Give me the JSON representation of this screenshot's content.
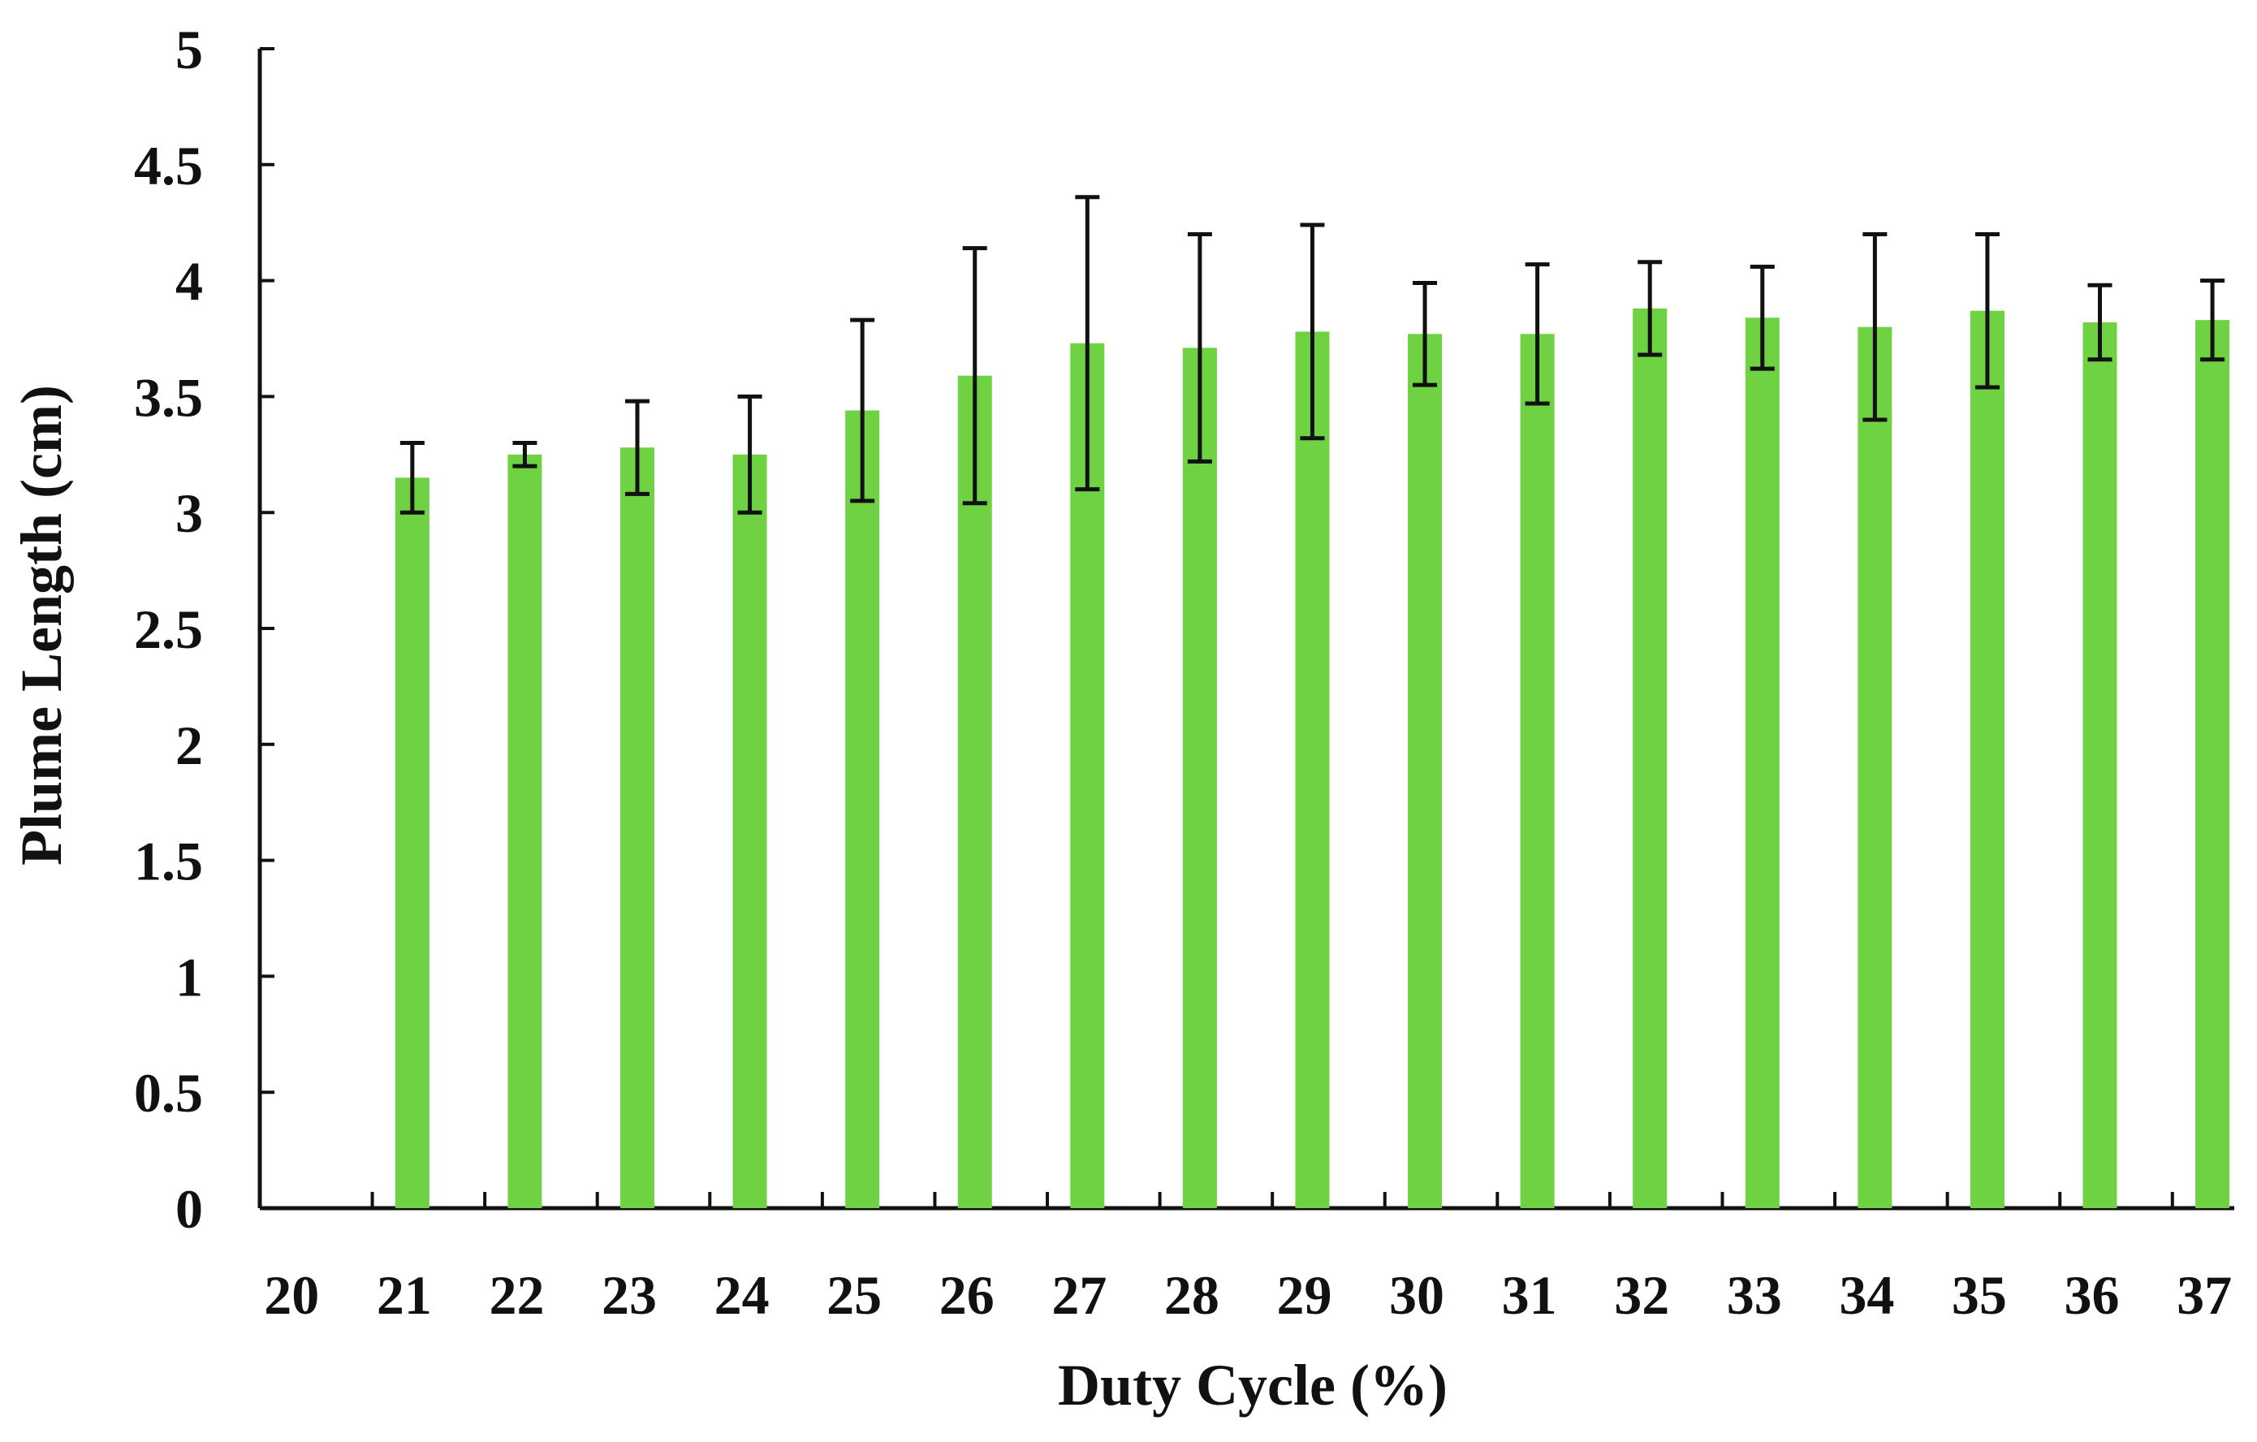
{
  "chart_data": {
    "type": "bar",
    "title": "",
    "xlabel": "Duty Cycle (%)",
    "ylabel": "Plume Length (cm)",
    "ylim": [
      0,
      5
    ],
    "yticks": [
      0,
      0.5,
      1,
      1.5,
      2,
      2.5,
      3,
      3.5,
      4,
      4.5,
      5
    ],
    "ytick_labels": [
      "0",
      "0.5",
      "1",
      "1.5",
      "2",
      "2.5",
      "3",
      "3.5",
      "4",
      "4.5",
      "5"
    ],
    "categories": [
      "20",
      "21",
      "22",
      "23",
      "24",
      "25",
      "26",
      "27",
      "28",
      "29",
      "30",
      "31",
      "32",
      "33",
      "34",
      "35",
      "36",
      "37"
    ],
    "values": [
      null,
      3.15,
      3.25,
      3.28,
      3.25,
      3.44,
      3.59,
      3.73,
      3.71,
      3.78,
      3.77,
      3.77,
      3.88,
      3.84,
      3.8,
      3.87,
      3.82,
      3.83
    ],
    "error": [
      null,
      0.15,
      0.05,
      0.2,
      0.25,
      0.39,
      0.55,
      0.63,
      0.49,
      0.46,
      0.22,
      0.3,
      0.2,
      0.22,
      0.4,
      0.33,
      0.16,
      0.17
    ],
    "bar_color": "#6ed243",
    "error_color": "#111111",
    "grid": false,
    "legend": "none"
  }
}
